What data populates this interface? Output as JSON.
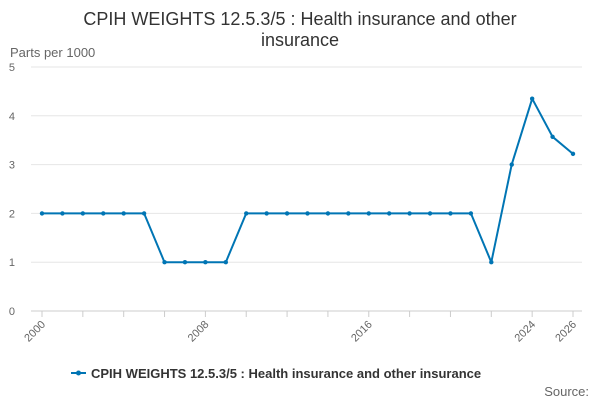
{
  "chart_data": {
    "type": "line",
    "title": "CPIH WEIGHTS 12.5.3/5 : Health insurance and other insurance",
    "title_lines": [
      "CPIH WEIGHTS 12.5.3/5 : Health insurance and other",
      "insurance"
    ],
    "ylabel": "Parts per 1000",
    "xlabel": "",
    "xlim": [
      2000,
      2026
    ],
    "ylim": [
      0,
      5
    ],
    "x_ticks": [
      2000,
      2008,
      2016,
      2024,
      2026
    ],
    "y_ticks": [
      0,
      1,
      2,
      3,
      4,
      5
    ],
    "grid": "horizontal",
    "legend_position": "bottom",
    "source_label": "Source:",
    "series": [
      {
        "name": "CPIH WEIGHTS 12.5.3/5 : Health insurance and other insurance",
        "color": "#0075b4",
        "x": [
          2000,
          2001,
          2002,
          2003,
          2004,
          2005,
          2006,
          2007,
          2008,
          2009,
          2010,
          2011,
          2012,
          2013,
          2014,
          2015,
          2016,
          2017,
          2018,
          2019,
          2020,
          2021,
          2022,
          2023,
          2024,
          2025,
          2026
        ],
        "y": [
          2,
          2,
          2,
          2,
          2,
          2,
          1,
          1,
          1,
          1,
          2,
          2,
          2,
          2,
          2,
          2,
          2,
          2,
          2,
          2,
          2,
          2,
          1,
          3,
          4.35,
          3.57,
          3.22
        ]
      }
    ]
  }
}
